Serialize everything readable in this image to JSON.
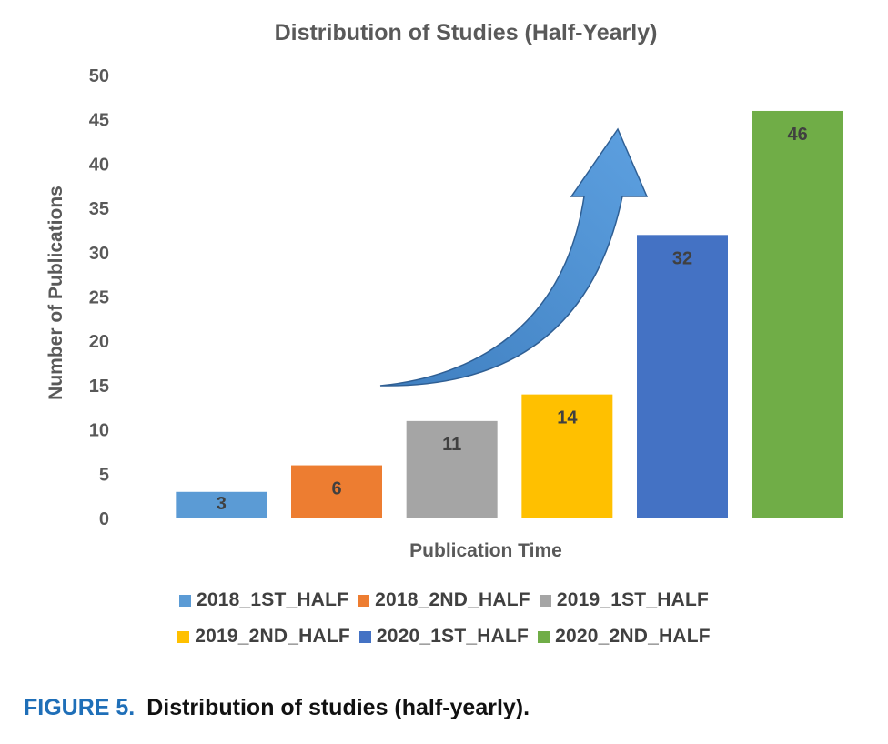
{
  "chart_data": {
    "type": "bar",
    "title": "Distribution of Studies (Half-Yearly)",
    "xlabel": "Publication Time",
    "ylabel": "Number of Publications",
    "ylim": [
      0,
      50
    ],
    "ytick_step": 5,
    "categories": [
      "2018_1ST_HALF",
      "2018_2ND_HALF",
      "2019_1ST_HALF",
      "2019_2ND_HALF",
      "2020_1ST_HALF",
      "2020_2ND_HALF"
    ],
    "values": [
      3,
      6,
      11,
      14,
      32,
      46
    ],
    "colors": [
      "#5b9bd5",
      "#ed7d31",
      "#a5a5a5",
      "#ffc000",
      "#4472c4",
      "#70ad47"
    ],
    "data_labels": true,
    "grid": false,
    "legend_position": "bottom",
    "annotation": "upward-arrow"
  },
  "caption": {
    "label": "FIGURE 5.",
    "text": "Distribution of studies (half-yearly)."
  }
}
